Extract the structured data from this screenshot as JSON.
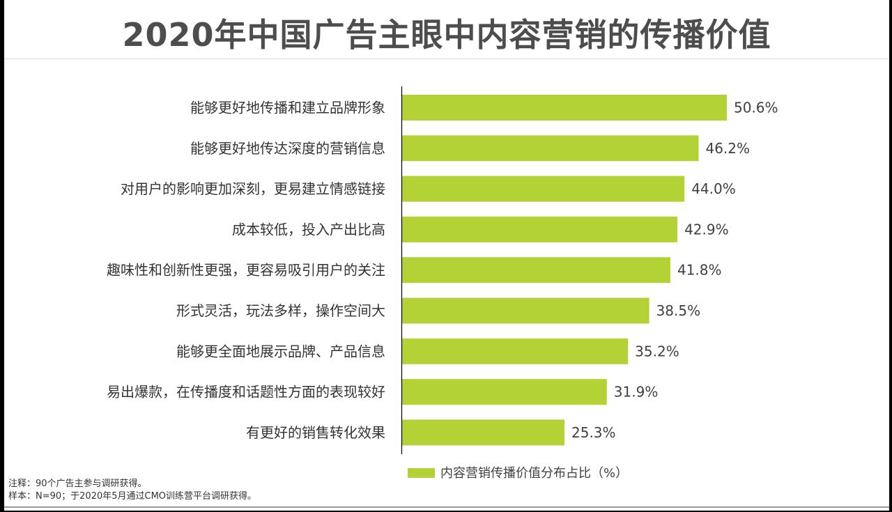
{
  "title": "2020年中国广告主眼中内容营销的传播价值",
  "chart_data": {
    "type": "bar",
    "orientation": "horizontal",
    "categories": [
      "能够更好地传播和建立品牌形象",
      "能够更好地传达深度的营销信息",
      "对用户的影响更加深刻，更易建立情感链接",
      "成本较低，投入产出比高",
      "趣味性和创新性更强，更容易吸引用户的关注",
      "形式灵活，玩法多样，操作空间大",
      "能够更全面地展示品牌、产品信息",
      "易出爆款，在传播度和话题性方面的表现较好",
      "有更好的销售转化效果"
    ],
    "series": [
      {
        "name": "内容营销传播价值分布占比（%）",
        "values": [
          50.6,
          46.2,
          44.0,
          42.9,
          41.8,
          38.5,
          35.2,
          31.9,
          25.3
        ],
        "labels": [
          "50.6%",
          "46.2%",
          "44.0%",
          "42.9%",
          "41.8%",
          "38.5%",
          "35.2%",
          "31.9%",
          "25.3%"
        ]
      }
    ],
    "xlim": [
      0,
      50.6
    ],
    "grid": false,
    "legend": "bottom",
    "color": "#b2d235"
  },
  "notes": {
    "note": "注释：90个广告主参与调研获得。",
    "sample": "样本：N=90；于2020年5月通过CMO训练营平台调研获得。"
  }
}
